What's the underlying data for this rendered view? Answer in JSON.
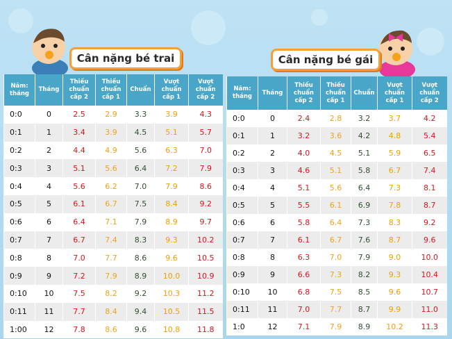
{
  "tables": [
    {
      "title": "Cân nặng bé trai",
      "headers": [
        "Năm: tháng",
        "Tháng",
        "Thiếu chuẩn cấp 2",
        "Thiếu chuẩn cấp 1",
        "Chuẩn",
        "Vượt chuẩn cấp 1",
        "Vượt chuẩn cấp 2"
      ],
      "rows": [
        [
          "0:0",
          "0",
          "2.5",
          "2.9",
          "3.3",
          "3.9",
          "4.3"
        ],
        [
          "0:1",
          "1",
          "3.4",
          "3.9",
          "4.5",
          "5.1",
          "5.7"
        ],
        [
          "0:2",
          "2",
          "4.4",
          "4.9",
          "5.6",
          "6.3",
          "7.0"
        ],
        [
          "0:3",
          "3",
          "5.1",
          "5.6",
          "6.4",
          "7.2",
          "7.9"
        ],
        [
          "0:4",
          "4",
          "5.6",
          "6.2",
          "7.0",
          "7.9",
          "8.6"
        ],
        [
          "0:5",
          "5",
          "6.1",
          "6.7",
          "7.5",
          "8.4",
          "9.2"
        ],
        [
          "0:6",
          "6",
          "6.4",
          "7.1",
          "7.9",
          "8.9",
          "9.7"
        ],
        [
          "0:7",
          "7",
          "6.7",
          "7.4",
          "8.3",
          "9.3",
          "10.2"
        ],
        [
          "0:8",
          "8",
          "7.0",
          "7.7",
          "8.6",
          "9.6",
          "10.5"
        ],
        [
          "0:9",
          "9",
          "7.2",
          "7.9",
          "8.9",
          "10.0",
          "10.9"
        ],
        [
          "0:10",
          "10",
          "7.5",
          "8.2",
          "9.2",
          "10.3",
          "11.2"
        ],
        [
          "0:11",
          "11",
          "7.7",
          "8.4",
          "9.4",
          "10.5",
          "11.5"
        ],
        [
          "1:00",
          "12",
          "7.8",
          "8.6",
          "9.6",
          "10.8",
          "11.8"
        ]
      ]
    },
    {
      "title": "Cân nặng bé gái",
      "headers": [
        "Năm: tháng",
        "Tháng",
        "Thiếu chuẩn cấp 2",
        "Thiếu chuẩn cấp 1",
        "Chuẩn",
        "Vượt chuẩn cấp 1",
        "Vượt chuẩn cấp 2"
      ],
      "rows": [
        [
          "0:0",
          "0",
          "2.4",
          "2.8",
          "3.2",
          "3.7",
          "4.2"
        ],
        [
          "0:1",
          "1",
          "3.2",
          "3.6",
          "4.2",
          "4.8",
          "5.4"
        ],
        [
          "0:2",
          "2",
          "4.0",
          "4.5",
          "5.1",
          "5.9",
          "6.5"
        ],
        [
          "0:3",
          "3",
          "4.6",
          "5.1",
          "5.8",
          "6.7",
          "7.4"
        ],
        [
          "0:4",
          "4",
          "5.1",
          "5.6",
          "6.4",
          "7.3",
          "8.1"
        ],
        [
          "0:5",
          "5",
          "5.5",
          "6.1",
          "6.9",
          "7.8",
          "8.7"
        ],
        [
          "0:6",
          "6",
          "5.8",
          "6.4",
          "7.3",
          "8.3",
          "9.2"
        ],
        [
          "0:7",
          "7",
          "6.1",
          "6.7",
          "7.6",
          "8.7",
          "9.6"
        ],
        [
          "0:8",
          "8",
          "6.3",
          "7.0",
          "7.9",
          "9.0",
          "10.0"
        ],
        [
          "0:9",
          "9",
          "6.6",
          "7.3",
          "8.2",
          "9.3",
          "10.4"
        ],
        [
          "0:10",
          "10",
          "6.8",
          "7.5",
          "8.5",
          "9.6",
          "10.7"
        ],
        [
          "0:11",
          "11",
          "7.0",
          "7.7",
          "8.7",
          "9.9",
          "11.0"
        ],
        [
          "1:0",
          "12",
          "7.1",
          "7.9",
          "8.9",
          "10.2",
          "11.3"
        ]
      ]
    }
  ]
}
